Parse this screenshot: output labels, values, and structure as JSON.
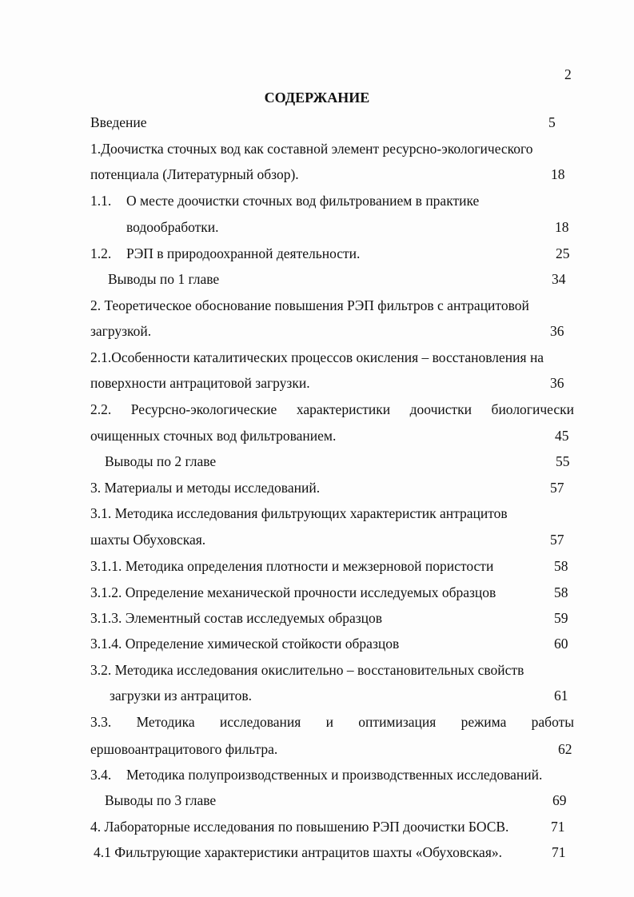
{
  "page_number": "2",
  "title": "СОДЕРЖАНИЕ",
  "entries": [
    {
      "text": "Введение",
      "page": "5"
    },
    {
      "text": "1.Доочистка сточных вод как составной элемент ресурсно-экологического"
    },
    {
      "text": "потенциала (Литературный обзор).",
      "page": "18"
    },
    {
      "num": "1.1.",
      "text": "О месте доочистки сточных вод фильтрованием в практике"
    },
    {
      "text": "водообработки.",
      "page": "18"
    },
    {
      "num": "1.2.",
      "text": "РЭП в  природоохранной деятельности.",
      "page": "25"
    },
    {
      "text": "Выводы по 1 главе",
      "page": "34"
    },
    {
      "text": "2. Теоретическое обоснование повышения РЭП фильтров с антрацитовой"
    },
    {
      "text": "загрузкой.",
      "page": "36"
    },
    {
      "text": "2.1.Особенности каталитических процессов окисления – восстановления на"
    },
    {
      "text": "поверхности антрацитовой загрузки.",
      "page": "36"
    },
    {
      "text": "2.2. Ресурсно-экологические характеристики доочистки биологически"
    },
    {
      "text": "очищенных сточных вод фильтрованием.",
      "page": "45"
    },
    {
      "text": "Выводы по 2 главе",
      "page": "55"
    },
    {
      "text": "3. Материалы и методы исследований.",
      "page": "57"
    },
    {
      "text": "3.1. Методика исследования фильтрующих характеристик антрацитов"
    },
    {
      "text": "шахты Обуховская.",
      "page": "57"
    },
    {
      "text": "3.1.1. Методика определения плотности и межзерновой пористости",
      "page": "58"
    },
    {
      "text": "3.1.2. Определение механической прочности исследуемых образцов",
      "page": "58"
    },
    {
      "text": "3.1.3. Элементный состав исследуемых образцов",
      "page": "59"
    },
    {
      "text": "3.1.4. Определение химической стойкости образцов",
      "page": "60"
    },
    {
      "text": "3.2. Методика исследования окислительно – восстановительных свойств"
    },
    {
      "text": "загрузки  из антрацитов.",
      "page": "61"
    },
    {
      "text": "3.3. Методика исследования и оптимизация режима работы"
    },
    {
      "text": "ершовоантрацитового  фильтра.",
      "page": "62"
    },
    {
      "num": "3.4.",
      "text": "Методика полупроизводственных и производственных исследований."
    },
    {
      "text": "Выводы по 3 главе",
      "page": "69"
    },
    {
      "text": "4.  Лабораторные исследования по повышению РЭП доочистки БОСВ.",
      "page": "71"
    },
    {
      "text": "4.1 Фильтрующие характеристики антрацитов шахты «Обуховская».",
      "page": "71"
    }
  ]
}
